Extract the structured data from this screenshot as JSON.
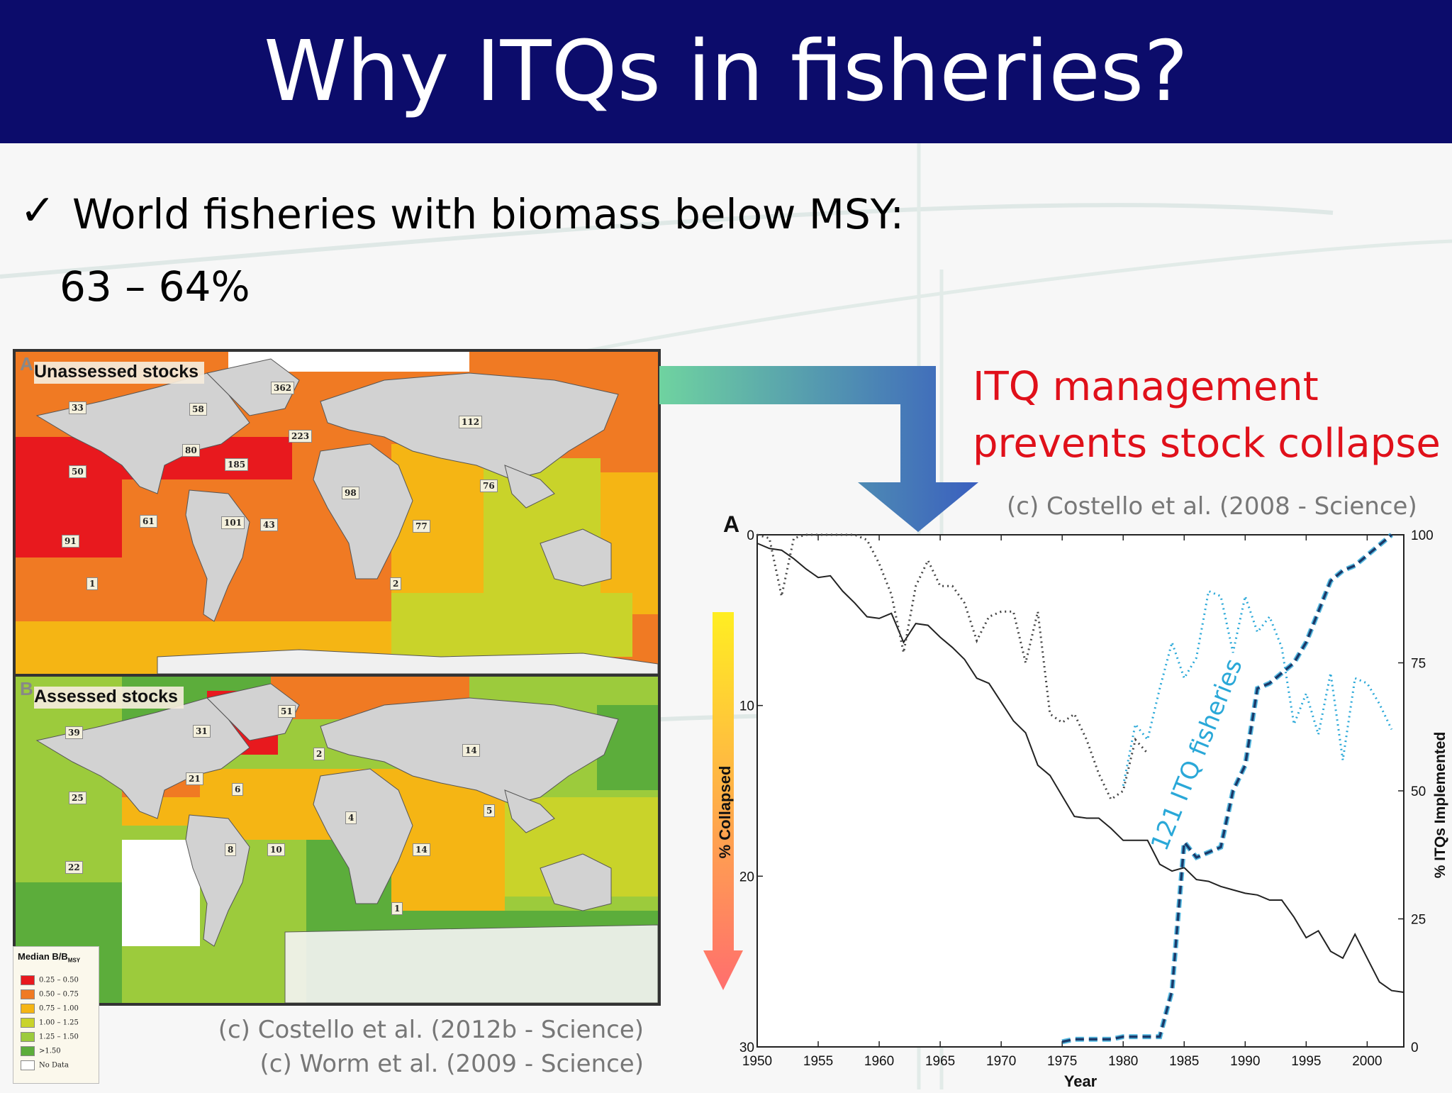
{
  "slide": {
    "title": "Why ITQs in fisheries?",
    "bullet_mark": "✓",
    "bullet_text": "World fisheries with biomass below MSY:",
    "bullet_value": "63 – 64%",
    "itq_heading_line1": "ITQ management",
    "itq_heading_line2": "prevents stock collapse",
    "credit_costello_2008": "(c) Costello et al. (2008 - Science)",
    "credit_costello_2012": "(c) Costello et al. (2012b - Science)",
    "credit_worm": "(c) Worm et al. (2009 - Science)"
  },
  "maps": {
    "panel_a": {
      "letter": "A",
      "label": "Unassessed stocks",
      "region_counts": [
        "33",
        "362",
        "58",
        "80",
        "50",
        "185",
        "223",
        "112",
        "61",
        "101",
        "43",
        "91",
        "98",
        "77",
        "76",
        "1",
        "2"
      ]
    },
    "panel_b": {
      "letter": "B",
      "label": "Assessed stocks",
      "region_counts": [
        "39",
        "51",
        "31",
        "2",
        "14",
        "21",
        "6",
        "25",
        "8",
        "10",
        "4",
        "14",
        "5",
        "22",
        "1"
      ]
    },
    "legend": {
      "title": "Median B/B",
      "title_sub": "MSY",
      "items": [
        {
          "label": "0.25 – 0.50",
          "color": "#e8191e"
        },
        {
          "label": "0.50 – 0.75",
          "color": "#f07a23"
        },
        {
          "label": "0.75 – 1.00",
          "color": "#f5b514"
        },
        {
          "label": "1.00 – 1.25",
          "color": "#c9d32a"
        },
        {
          "label": "1.25 – 1.50",
          "color": "#9ccb3c"
        },
        {
          "label": ">1.50",
          "color": "#5cad3b"
        },
        {
          "label": "No Data",
          "color": "#ffffff"
        }
      ]
    },
    "colors": {
      "red": "#e8191e",
      "orange": "#f07a23",
      "amber": "#f5b514",
      "yellow_green": "#c9d32a",
      "light_green": "#9ccb3c",
      "green": "#5cad3b",
      "land": "#d2d2d2"
    }
  },
  "chart_data": {
    "type": "line",
    "panel_letter": "A",
    "xlabel": "Year",
    "ylabel_left": "% Collapsed",
    "ylabel_right": "% ITQs Implemented",
    "annotation": "121 ITQ fisheries",
    "xlim": [
      1950,
      2003
    ],
    "ylim_left": [
      0,
      30
    ],
    "left_axis_inverted": true,
    "ylim_right": [
      0,
      100
    ],
    "x_ticks": [
      1950,
      1955,
      1960,
      1965,
      1970,
      1975,
      1980,
      1985,
      1990,
      1995,
      2000
    ],
    "y_left_ticks": [
      0,
      10,
      20,
      30
    ],
    "y_right_ticks": [
      0,
      25,
      50,
      75,
      100
    ],
    "series": [
      {
        "axis": "left",
        "style": "solid",
        "color": "#222222",
        "x": [
          1950,
          1951,
          1952,
          1953,
          1954,
          1955,
          1956,
          1957,
          1958,
          1959,
          1960,
          1961,
          1962,
          1963,
          1964,
          1965,
          1966,
          1967,
          1968,
          1969,
          1970,
          1971,
          1972,
          1973,
          1974,
          1975,
          1976,
          1977,
          1978,
          1979,
          1980,
          1981,
          1982,
          1983,
          1984,
          1985,
          1986,
          1987,
          1988,
          1989,
          1990,
          1991,
          1992,
          1993,
          1994,
          1995,
          1996,
          1997,
          1998,
          1999,
          2000,
          2001,
          2002,
          2003
        ],
        "y": [
          0.5,
          0.8,
          0.9,
          1.4,
          2.0,
          2.5,
          2.4,
          3.3,
          4.0,
          4.8,
          4.9,
          4.6,
          6.3,
          5.2,
          5.3,
          6.0,
          6.6,
          7.3,
          8.4,
          8.7,
          9.8,
          10.9,
          11.6,
          13.5,
          14.1,
          15.3,
          16.5,
          16.6,
          16.6,
          17.2,
          17.9,
          17.9,
          17.9,
          19.3,
          19.7,
          19.5,
          20.2,
          20.3,
          20.6,
          20.8,
          21.0,
          21.1,
          21.4,
          21.4,
          22.4,
          23.6,
          23.2,
          24.4,
          24.8,
          23.4,
          24.8,
          26.2,
          26.7,
          26.8
        ]
      },
      {
        "axis": "left",
        "style": "dotted",
        "color": "#444444",
        "x": [
          1950,
          1951,
          1952,
          1953,
          1954,
          1955,
          1956,
          1957,
          1958,
          1959,
          1960,
          1961,
          1962,
          1963,
          1964,
          1965,
          1966,
          1967,
          1968,
          1969,
          1970,
          1971,
          1972,
          1973,
          1974,
          1975,
          1976,
          1977,
          1978,
          1979,
          1980,
          1981,
          1982
        ],
        "y": [
          0,
          0.2,
          3.6,
          0.2,
          0,
          0,
          0,
          0,
          0,
          0.3,
          1.7,
          3.5,
          6.9,
          3.0,
          1.5,
          3.0,
          3.0,
          4.0,
          6.2,
          4.8,
          4.5,
          4.5,
          7.5,
          4.5,
          10.5,
          11.0,
          10.5,
          12.0,
          14.0,
          15.5,
          15.0,
          12.0,
          12.8
        ]
      },
      {
        "axis": "right",
        "style": "dotted",
        "color": "#2aa8d8",
        "x": [
          1980,
          1981,
          1982,
          1983,
          1984,
          1985,
          1986,
          1987,
          1988,
          1989,
          1990,
          1991,
          1992,
          1993,
          1994,
          1995,
          1996,
          1997,
          1998,
          1999,
          2000,
          2001,
          2002
        ],
        "y": [
          51,
          63,
          60,
          70,
          79,
          72,
          76,
          89,
          88,
          77,
          88,
          81,
          84,
          78,
          63,
          69,
          61,
          73,
          56,
          72,
          71,
          67,
          62
        ]
      },
      {
        "axis": "right",
        "style": "dashed",
        "color": "#1a3a6a",
        "x": [
          1975,
          1976,
          1977,
          1978,
          1979,
          1980,
          1981,
          1982,
          1983,
          1984,
          1985,
          1986,
          1987,
          1988,
          1989,
          1990,
          1991,
          1992,
          1993,
          1994,
          1995,
          1996,
          1997,
          1998,
          1999,
          2000,
          2001,
          2002
        ],
        "y": [
          1,
          1.5,
          1.5,
          1.5,
          1.5,
          2,
          2,
          2,
          2,
          11,
          40,
          37,
          38,
          39,
          50,
          55,
          70,
          71,
          73,
          75,
          79,
          85,
          91,
          93,
          94,
          96,
          98,
          100
        ]
      }
    ],
    "gradient_arrow_colors": [
      "#ffee22",
      "#ff6e6e"
    ],
    "arrow_colors": {
      "flow_start": "#6fd3a0",
      "flow_end": "#3a5fbf"
    }
  }
}
